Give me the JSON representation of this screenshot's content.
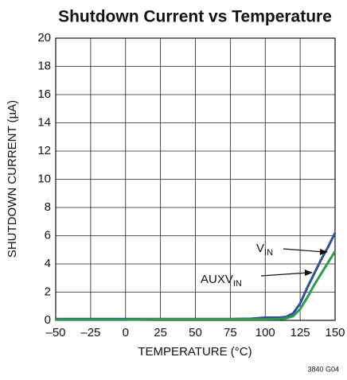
{
  "chart_data": {
    "type": "line",
    "title": "Shutdown Current vs Temperature",
    "xlabel": "TEMPERATURE (°C)",
    "ylabel": "SHUTDOWN CURRENT (µA)",
    "footnote": "3840 G04",
    "x": [
      -50,
      -25,
      0,
      25,
      50,
      75,
      90,
      100,
      110,
      115,
      120,
      125,
      130,
      135,
      140,
      145,
      150
    ],
    "series": [
      {
        "name": "V",
        "name_sub": "IN",
        "color": "#2d4f9e",
        "values": [
          0.1,
          0.1,
          0.1,
          0.1,
          0.1,
          0.1,
          0.12,
          0.2,
          0.2,
          0.25,
          0.5,
          1.2,
          2.3,
          3.3,
          4.3,
          5.2,
          6.2
        ]
      },
      {
        "name": "AUXV",
        "name_sub": "IN",
        "color": "#2f9a4c",
        "values": [
          0.05,
          0.05,
          0.05,
          0.08,
          0.08,
          0.08,
          0.08,
          0.08,
          0.1,
          0.15,
          0.3,
          0.8,
          1.6,
          2.5,
          3.3,
          4.1,
          4.9
        ]
      }
    ],
    "xlim": [
      -50,
      150
    ],
    "xticks": [
      {
        "value": -50,
        "label": "–50"
      },
      {
        "value": -25,
        "label": "–25"
      },
      0,
      25,
      50,
      75,
      100,
      125,
      150
    ],
    "ylim": [
      0,
      20
    ],
    "yticks": [
      0,
      2,
      4,
      6,
      8,
      10,
      12,
      14,
      16,
      18,
      20
    ],
    "grid": true
  }
}
